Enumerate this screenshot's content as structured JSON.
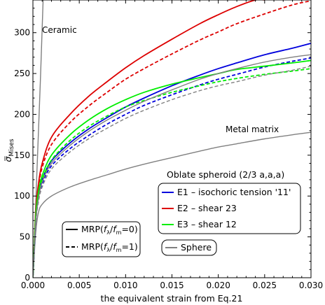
{
  "chart_data": {
    "type": "line",
    "xlabel": "the equivalent strain from Eq.21",
    "ylabel": "σ̅",
    "ylabel_sub": "Mises",
    "xlim": [
      0,
      0.03
    ],
    "ylim": [
      0,
      340
    ],
    "xticks": [
      "0.000",
      "0.005",
      "0.010",
      "0.015",
      "0.020",
      "0.025",
      "0.030"
    ],
    "yticks": [
      "0",
      "50",
      "100",
      "150",
      "200",
      "250",
      "300"
    ],
    "grid": false,
    "annotations": {
      "ceramic": "Ceramic",
      "metal_matrix": "Metal matrix",
      "oblate_title": "Oblate spheroid (2/3 a,a,a)"
    },
    "legend_load_cases": [
      {
        "label": "E1 – isochoric tension '11'",
        "color": "#0000dd"
      },
      {
        "label": "E2 – shear 23",
        "color": "#dd0000"
      },
      {
        "label": "E3 – shear 12",
        "color": "#00ee00"
      }
    ],
    "legend_models": [
      {
        "label_prefix": "MRP(",
        "f_lambda": "f",
        "lambda_sub": "λ",
        "slash": "/",
        "f_m": "f",
        "m_sub": "m",
        "label_suffix": "=0)",
        "style": "solid"
      },
      {
        "label_prefix": "MRP(",
        "f_lambda": "f",
        "lambda_sub": "λ",
        "slash": "/",
        "f_m": "f",
        "m_sub": "m",
        "label_suffix": "=1)",
        "style": "dashed"
      }
    ],
    "legend_sphere": {
      "label": "Sphere",
      "color": "#808080"
    },
    "series": [
      {
        "id": "ceramic",
        "color": "#808080",
        "dash": false,
        "x": [
          0,
          0.0004,
          0.0008,
          0.0011
        ],
        "y": [
          0,
          120,
          240,
          340
        ]
      },
      {
        "id": "metal_matrix",
        "color": "#808080",
        "dash": false,
        "x": [
          0,
          0.0003,
          0.0006,
          0.001,
          0.002,
          0.004,
          0.006,
          0.008,
          0.01,
          0.012,
          0.015,
          0.018,
          0.02,
          0.022,
          0.025,
          0.028,
          0.03
        ],
        "y": [
          0,
          55,
          80,
          90,
          100,
          111,
          119,
          126,
          133,
          139,
          147,
          155,
          160,
          164,
          170,
          175,
          178
        ]
      },
      {
        "id": "E2_mrp0",
        "color": "#dd0000",
        "dash": false,
        "x": [
          0,
          0.0003,
          0.0006,
          0.001,
          0.002,
          0.004,
          0.006,
          0.008,
          0.01,
          0.012,
          0.015,
          0.018,
          0.02,
          0.022,
          0.024,
          0.025
        ],
        "y": [
          0,
          80,
          115,
          140,
          172,
          200,
          222,
          240,
          257,
          272,
          292,
          311,
          322,
          332,
          340,
          340
        ]
      },
      {
        "id": "E2_mrp1",
        "color": "#dd0000",
        "dash": true,
        "x": [
          0,
          0.0003,
          0.0006,
          0.001,
          0.002,
          0.004,
          0.006,
          0.008,
          0.01,
          0.012,
          0.015,
          0.018,
          0.02,
          0.022,
          0.025,
          0.028,
          0.03
        ],
        "y": [
          0,
          75,
          110,
          135,
          163,
          190,
          210,
          227,
          243,
          256,
          274,
          291,
          301,
          311,
          323,
          334,
          339
        ]
      },
      {
        "id": "E1_mrp0",
        "color": "#0000dd",
        "dash": false,
        "x": [
          0,
          0.0003,
          0.0006,
          0.001,
          0.002,
          0.004,
          0.006,
          0.008,
          0.01,
          0.012,
          0.015,
          0.018,
          0.02,
          0.022,
          0.025,
          0.028,
          0.03
        ],
        "y": [
          0,
          70,
          100,
          120,
          143,
          165,
          182,
          196,
          209,
          220,
          235,
          248,
          256,
          263,
          273,
          281,
          287
        ]
      },
      {
        "id": "E1_mrp1",
        "color": "#0000dd",
        "dash": true,
        "x": [
          0,
          0.0003,
          0.0006,
          0.001,
          0.002,
          0.004,
          0.006,
          0.008,
          0.01,
          0.012,
          0.015,
          0.018,
          0.02,
          0.022,
          0.025,
          0.028,
          0.03
        ],
        "y": [
          0,
          68,
          97,
          115,
          137,
          158,
          174,
          188,
          200,
          211,
          224,
          236,
          243,
          249,
          258,
          265,
          269
        ]
      },
      {
        "id": "E3_mrp0",
        "color": "#00ee00",
        "dash": false,
        "x": [
          0,
          0.0003,
          0.0006,
          0.001,
          0.002,
          0.004,
          0.006,
          0.008,
          0.01,
          0.012,
          0.015,
          0.018,
          0.02,
          0.022,
          0.025,
          0.028,
          0.03
        ],
        "y": [
          0,
          75,
          105,
          125,
          150,
          175,
          193,
          207,
          218,
          227,
          237,
          245,
          250,
          255,
          259,
          263,
          266
        ]
      },
      {
        "id": "E3_mrp1",
        "color": "#00ee00",
        "dash": true,
        "x": [
          0,
          0.0003,
          0.0006,
          0.001,
          0.002,
          0.004,
          0.006,
          0.008,
          0.01,
          0.012,
          0.015,
          0.018,
          0.02,
          0.022,
          0.025,
          0.028,
          0.03
        ],
        "y": [
          0,
          72,
          102,
          120,
          144,
          168,
          185,
          198,
          209,
          217,
          227,
          235,
          240,
          244,
          249,
          253,
          256
        ]
      },
      {
        "id": "sphere_mrp0",
        "color": "#808080",
        "dash": false,
        "x": [
          0,
          0.0003,
          0.0006,
          0.001,
          0.002,
          0.004,
          0.006,
          0.008,
          0.01,
          0.012,
          0.015,
          0.018,
          0.02,
          0.022,
          0.025,
          0.028,
          0.03
        ],
        "y": [
          0,
          68,
          97,
          117,
          140,
          162,
          179,
          193,
          205,
          216,
          230,
          243,
          250,
          256,
          264,
          270,
          273
        ]
      },
      {
        "id": "sphere_mrp1",
        "color": "#808080",
        "dash": true,
        "x": [
          0,
          0.0003,
          0.0006,
          0.001,
          0.002,
          0.004,
          0.006,
          0.008,
          0.01,
          0.012,
          0.015,
          0.018,
          0.02,
          0.022,
          0.025,
          0.028,
          0.03
        ],
        "y": [
          0,
          65,
          93,
          111,
          133,
          154,
          170,
          183,
          195,
          205,
          218,
          229,
          235,
          240,
          248,
          254,
          259
        ]
      }
    ]
  }
}
